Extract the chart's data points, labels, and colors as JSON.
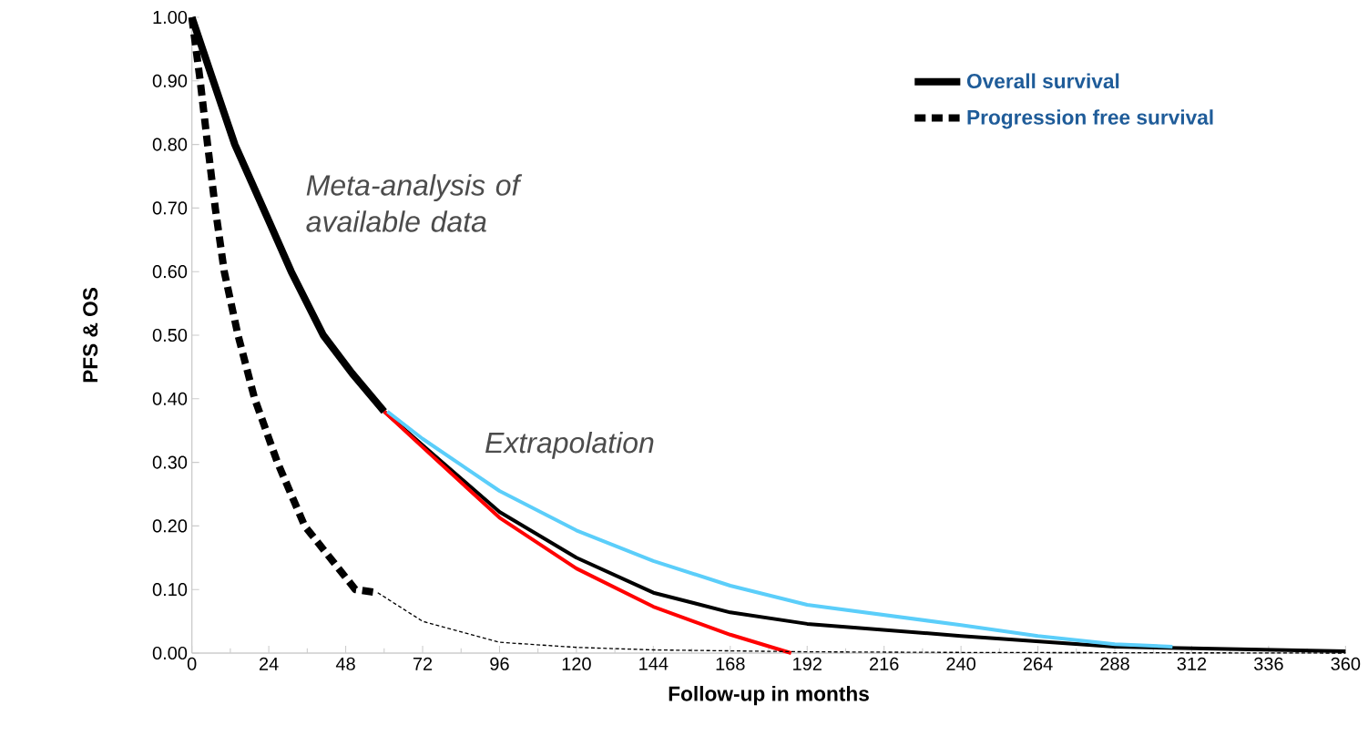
{
  "chart_data": {
    "type": "line",
    "xlabel": "Follow-up in months",
    "ylabel": "PFS & OS",
    "xlim": [
      0,
      360
    ],
    "ylim": [
      0,
      1
    ],
    "xticks": [
      0,
      24,
      48,
      72,
      96,
      120,
      144,
      168,
      192,
      216,
      240,
      264,
      288,
      312,
      336,
      360
    ],
    "yticks": [
      {
        "value": 0,
        "label": "0.00"
      },
      {
        "value": 0.1,
        "label": "0.10"
      },
      {
        "value": 0.2,
        "label": "0.20"
      },
      {
        "value": 0.3,
        "label": "0.30"
      },
      {
        "value": 0.4,
        "label": "0.40"
      },
      {
        "value": 0.5,
        "label": "0.50"
      },
      {
        "value": 0.6,
        "label": "0.60"
      },
      {
        "value": 0.7,
        "label": "0.70"
      },
      {
        "value": 0.8,
        "label": "0.80"
      },
      {
        "value": 0.9,
        "label": "0.90"
      },
      {
        "value": 1,
        "label": "1.00"
      }
    ],
    "grid": false,
    "legend": "top right",
    "marker": "none",
    "annotations": [
      "Meta-analysis of available data",
      "Extrapolation"
    ],
    "series": [
      {
        "name": "Overall survival",
        "color": "#000000",
        "line_style": "solid",
        "x": [
          0,
          6,
          13.4,
          24,
          31,
          41,
          50,
          60
        ],
        "values": [
          1.0,
          0.91,
          0.8,
          0.68,
          0.6,
          0.5,
          0.44,
          0.38
        ]
      },
      {
        "color": "#000000",
        "line_style": "solid",
        "x": [
          60,
          72,
          96,
          120,
          144,
          168,
          192,
          240,
          288,
          360
        ],
        "values": [
          0.38,
          0.327,
          0.222,
          0.15,
          0.095,
          0.064,
          0.046,
          0.027,
          0.01,
          0.003
        ]
      },
      {
        "color": "#ff0000",
        "line_style": "solid",
        "x": [
          60,
          72,
          96,
          120,
          144,
          168,
          187
        ],
        "values": [
          0.38,
          0.324,
          0.213,
          0.133,
          0.073,
          0.029,
          0.0
        ]
      },
      {
        "color": "#5bcefa",
        "line_style": "solid",
        "x": [
          61,
          72,
          96,
          120,
          144,
          168,
          192,
          240,
          264,
          288,
          306
        ],
        "values": [
          0.38,
          0.337,
          0.255,
          0.193,
          0.145,
          0.106,
          0.076,
          0.044,
          0.027,
          0.014,
          0.01
        ]
      },
      {
        "name": "Progression free survival",
        "color": "#000000",
        "line_style": "dashed",
        "x": [
          0,
          2.6,
          4.9,
          7.3,
          10.1,
          14.4,
          19.6,
          26.7,
          35.2,
          51,
          58
        ],
        "values": [
          1.0,
          0.9,
          0.8,
          0.7,
          0.6,
          0.5,
          0.4,
          0.3,
          0.2,
          0.1,
          0.095
        ]
      },
      {
        "color": "#000000",
        "line_style": "dashed",
        "x": [
          58,
          72,
          96,
          120,
          144,
          192,
          240,
          360
        ],
        "values": [
          0.095,
          0.05,
          0.017,
          0.009,
          0.005,
          0.002,
          0.001,
          0.0
        ]
      }
    ]
  }
}
